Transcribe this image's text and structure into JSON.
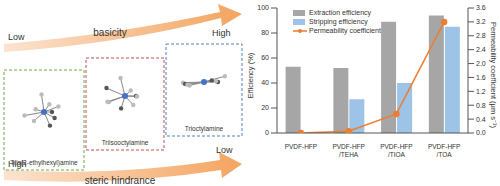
{
  "diagram": {
    "arrows": [
      {
        "label": "basicity",
        "start": "Low",
        "end": "High"
      },
      {
        "label": "steric hindrance",
        "start": "High",
        "end": "Low"
      }
    ],
    "molecules": [
      {
        "label": "Tris(2-ethylhexyl)amine",
        "color": "#6aa84f"
      },
      {
        "label": "Triisooctylamine",
        "color": "#c0504d"
      },
      {
        "label": "Trioctylamine",
        "color": "#4f81bd"
      }
    ]
  },
  "chart_data": {
    "type": "bar",
    "categories": [
      "PVDF-HFP",
      "PVDF-HFP/TEHA",
      "PVDF-HFP/TIOA",
      "PVDF-HFP/TOA"
    ],
    "y_label": "Efficiency (%)",
    "y2_label": "Permeability coefficient (μm s⁻¹)",
    "ylim": [
      0,
      100
    ],
    "yticks": [
      0,
      20,
      40,
      60,
      80,
      100
    ],
    "y2lim": [
      0,
      3.6
    ],
    "y2ticks": [
      {
        "value": 0,
        "label": "0.0"
      },
      0.4,
      0.8,
      1.2,
      1.6,
      {
        "value": 2,
        "label": "2.0"
      },
      2.4,
      2.8,
      3.2,
      3.6
    ],
    "legend": "top-left",
    "grid": false,
    "series": [
      {
        "name": "Extraction efficiency",
        "type": "bar",
        "color": "#a6a6a6",
        "values": [
          53,
          52,
          89,
          94
        ]
      },
      {
        "name": "Stripping efficiency",
        "type": "bar",
        "color": "#9dc3e6",
        "values": [
          0,
          27,
          40,
          85
        ]
      },
      {
        "name": "Permeability coefficient",
        "type": "line",
        "axis": "y2",
        "color": "#ed7d31",
        "marker": "circle",
        "values": [
          0,
          0.05,
          0.55,
          3.2
        ]
      }
    ]
  }
}
